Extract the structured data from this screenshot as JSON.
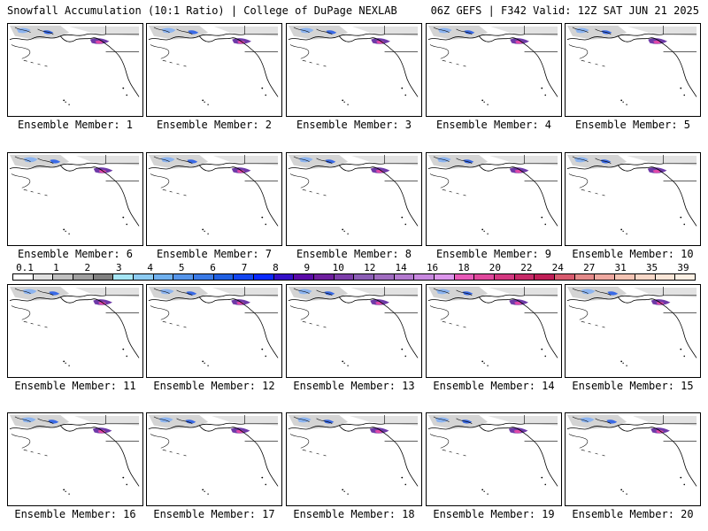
{
  "header": {
    "title_left": "Snowfall Accumulation (10:1 Ratio) | College of DuPage NEXLAB",
    "title_right": "06Z GEFS | F342 Valid: 12Z SAT JUN 21 2025"
  },
  "panels": [
    {
      "label": "Ensemble Member: 1"
    },
    {
      "label": "Ensemble Member: 2"
    },
    {
      "label": "Ensemble Member: 3"
    },
    {
      "label": "Ensemble Member: 4"
    },
    {
      "label": "Ensemble Member: 5"
    },
    {
      "label": "Ensemble Member: 6"
    },
    {
      "label": "Ensemble Member: 7"
    },
    {
      "label": "Ensemble Member: 8"
    },
    {
      "label": "Ensemble Member: 9"
    },
    {
      "label": "Ensemble Member: 10"
    },
    {
      "label": "Ensemble Member: 11"
    },
    {
      "label": "Ensemble Member: 12"
    },
    {
      "label": "Ensemble Member: 13"
    },
    {
      "label": "Ensemble Member: 14"
    },
    {
      "label": "Ensemble Member: 15"
    },
    {
      "label": "Ensemble Member: 16"
    },
    {
      "label": "Ensemble Member: 17"
    },
    {
      "label": "Ensemble Member: 18"
    },
    {
      "label": "Ensemble Member: 19"
    },
    {
      "label": "Ensemble Member: 20"
    }
  ],
  "colorbar": {
    "labels": [
      "0.1",
      "1",
      "2",
      "3",
      "4",
      "5",
      "6",
      "7",
      "8",
      "9",
      "10",
      "12",
      "14",
      "16",
      "18",
      "20",
      "22",
      "24",
      "27",
      "31",
      "35",
      "39"
    ],
    "colors": [
      "#ffffff",
      "#e0e0e0",
      "#c0c0c0",
      "#a0a0a0",
      "#808080",
      "#a6e6f5",
      "#8ccbf2",
      "#6fb0ee",
      "#5595ea",
      "#3a7ae6",
      "#2060e2",
      "#1446f0",
      "#0a2aff",
      "#3410c8",
      "#5a0aa8",
      "#6e1e9e",
      "#7d3eaa",
      "#8c5eb6",
      "#a06cc0",
      "#b47ad0",
      "#c888e0",
      "#dc96ec",
      "#e85ab8",
      "#e0489c",
      "#d43880",
      "#c82a68",
      "#c01e56",
      "#d85a6e",
      "#e48a8a",
      "#eea8a0",
      "#f4c4b4",
      "#f8d8c8",
      "#fbe6d8",
      "#fdf0e4"
    ]
  }
}
